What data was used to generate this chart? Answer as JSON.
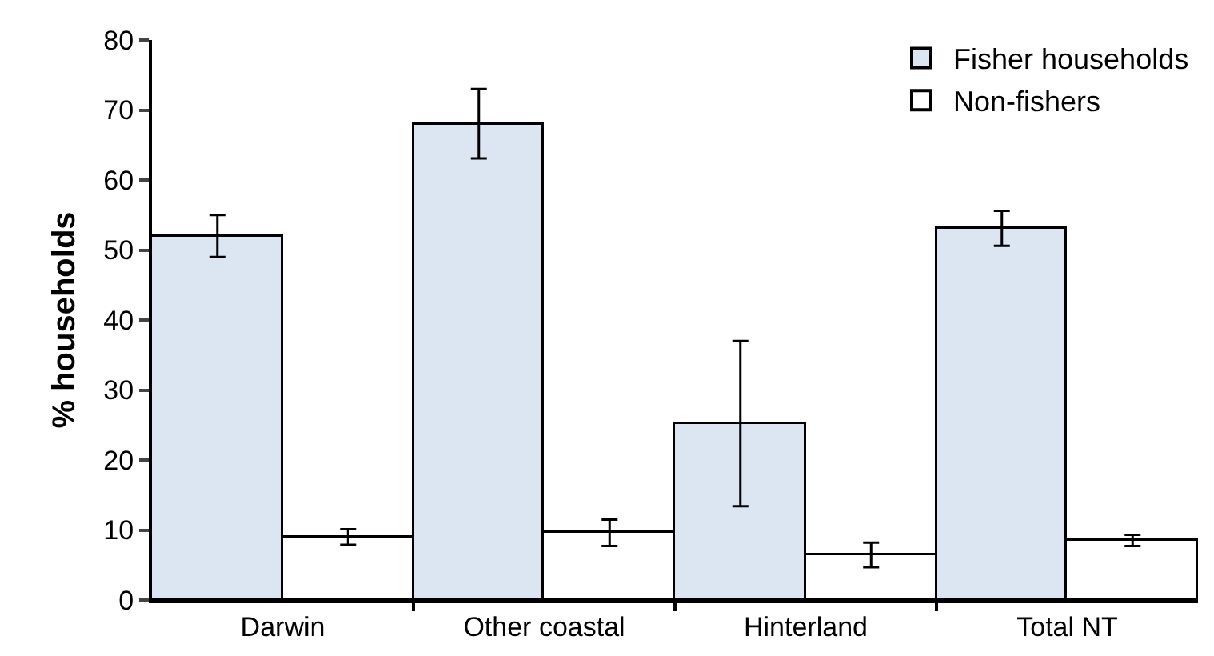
{
  "chart_data": {
    "type": "bar",
    "ylabel": "% households",
    "categories": [
      "Darwin",
      "Other coastal",
      "Hinterland",
      "Total NT"
    ],
    "series": [
      {
        "name": "Fisher households",
        "color": "#dce6f2",
        "values": [
          52,
          68,
          25.2,
          53.1
        ],
        "errors": [
          [
            49,
            55
          ],
          [
            63.1,
            73
          ],
          [
            13.4,
            37
          ],
          [
            50.6,
            55.6
          ]
        ]
      },
      {
        "name": "Non-fishers",
        "color": "#ffffff",
        "values": [
          9,
          9.6,
          6.4,
          8.5
        ],
        "errors": [
          [
            7.9,
            10.1
          ],
          [
            7.7,
            11.5
          ],
          [
            4.7,
            8.2
          ],
          [
            7.7,
            9.3
          ]
        ]
      }
    ],
    "ylim": [
      0,
      80
    ],
    "yticks": [
      0,
      10,
      20,
      30,
      40,
      50,
      60,
      70,
      80
    ],
    "grid": false,
    "legend": "top right"
  }
}
